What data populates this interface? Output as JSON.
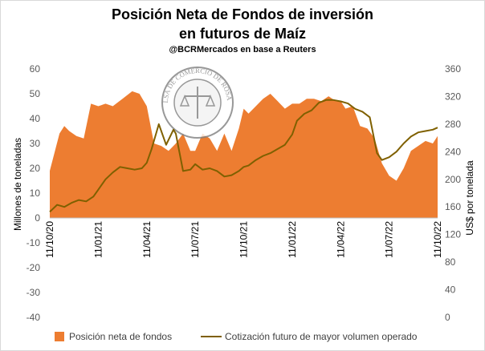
{
  "chart_data": {
    "type": "area",
    "title": "Posición Neta de Fondos de inversión",
    "title_line2": "en futuros de Maíz",
    "subtitle": "@BCRMercados  en base a Reuters",
    "watermark_text": "BOLSA DE COMERCIO DE ROSARIO",
    "ylabel_left": "Millones de toneladas",
    "ylabel_right": "US$ por tonelada",
    "ylim_left": [
      -40,
      60
    ],
    "ylim_right": [
      0,
      360
    ],
    "yticks_left": [
      "-40",
      "-30",
      "-20",
      "-10",
      "0",
      "10",
      "20",
      "30",
      "40",
      "50",
      "60"
    ],
    "yticks_right": [
      "0",
      "40",
      "80",
      "120",
      "160",
      "200",
      "240",
      "280",
      "320",
      "360"
    ],
    "xticks": [
      "11/10/20",
      "11/01/21",
      "11/04/21",
      "11/07/21",
      "11/10/21",
      "11/01/22",
      "11/04/22",
      "11/07/22",
      "11/10/22"
    ],
    "grid": false,
    "legend_position": "bottom",
    "colors": {
      "area": "#ED7D31",
      "line": "#7F6000"
    },
    "series": [
      {
        "name": "Posición neta de fondos",
        "type": "area",
        "axis": "left",
        "x": [
          0,
          0.2,
          0.3,
          0.4,
          0.55,
          0.7,
          0.85,
          1.0,
          1.15,
          1.3,
          1.5,
          1.7,
          1.85,
          2.0,
          2.15,
          2.3,
          2.45,
          2.6,
          2.75,
          2.9,
          3.0,
          3.15,
          3.3,
          3.45,
          3.6,
          3.75,
          3.9,
          4.0,
          4.1,
          4.25,
          4.4,
          4.55,
          4.7,
          4.85,
          5.0,
          5.15,
          5.3,
          5.45,
          5.6,
          5.75,
          5.9,
          6.0,
          6.1,
          6.25,
          6.4,
          6.55,
          6.7,
          6.85,
          7.0,
          7.15,
          7.3,
          7.45,
          7.6,
          7.75,
          7.9,
          8.0
        ],
        "values": [
          19,
          34,
          37,
          35,
          33,
          32,
          46,
          45,
          46,
          45,
          48,
          51,
          50,
          45,
          30,
          29,
          27,
          30,
          34,
          27,
          27,
          34,
          32,
          27,
          34,
          27,
          36,
          44,
          42,
          45,
          48,
          50,
          47,
          44,
          46,
          46,
          48,
          48,
          47,
          49,
          47,
          47,
          44,
          45,
          37,
          36,
          32,
          22,
          17,
          15,
          20,
          27,
          29,
          31,
          30,
          33
        ]
      },
      {
        "name": "Cotización futuro de mayor volumen operado",
        "type": "line",
        "axis": "right",
        "x": [
          0,
          0.15,
          0.3,
          0.45,
          0.6,
          0.75,
          0.9,
          1.0,
          1.15,
          1.3,
          1.45,
          1.6,
          1.75,
          1.9,
          2.0,
          2.1,
          2.25,
          2.4,
          2.55,
          2.6,
          2.75,
          2.9,
          3.0,
          3.15,
          3.3,
          3.45,
          3.6,
          3.75,
          3.9,
          4.0,
          4.1,
          4.25,
          4.4,
          4.55,
          4.7,
          4.85,
          5.0,
          5.1,
          5.25,
          5.4,
          5.55,
          5.7,
          5.85,
          6.0,
          6.15,
          6.3,
          6.45,
          6.6,
          6.75,
          6.85,
          7.0,
          7.15,
          7.3,
          7.45,
          7.6,
          7.75,
          7.9,
          8.0
        ],
        "values": [
          153,
          163,
          160,
          166,
          170,
          168,
          175,
          185,
          200,
          210,
          218,
          216,
          214,
          216,
          224,
          244,
          280,
          250,
          272,
          266,
          212,
          214,
          222,
          214,
          216,
          212,
          204,
          206,
          212,
          218,
          220,
          228,
          234,
          238,
          244,
          250,
          265,
          285,
          295,
          300,
          311,
          315,
          315,
          313,
          310,
          302,
          298,
          290,
          238,
          228,
          232,
          240,
          252,
          262,
          268,
          270,
          272,
          275
        ]
      }
    ]
  },
  "legend": {
    "area_label": "Posición neta de fondos",
    "line_label": "Cotización futuro de mayor volumen operado"
  }
}
